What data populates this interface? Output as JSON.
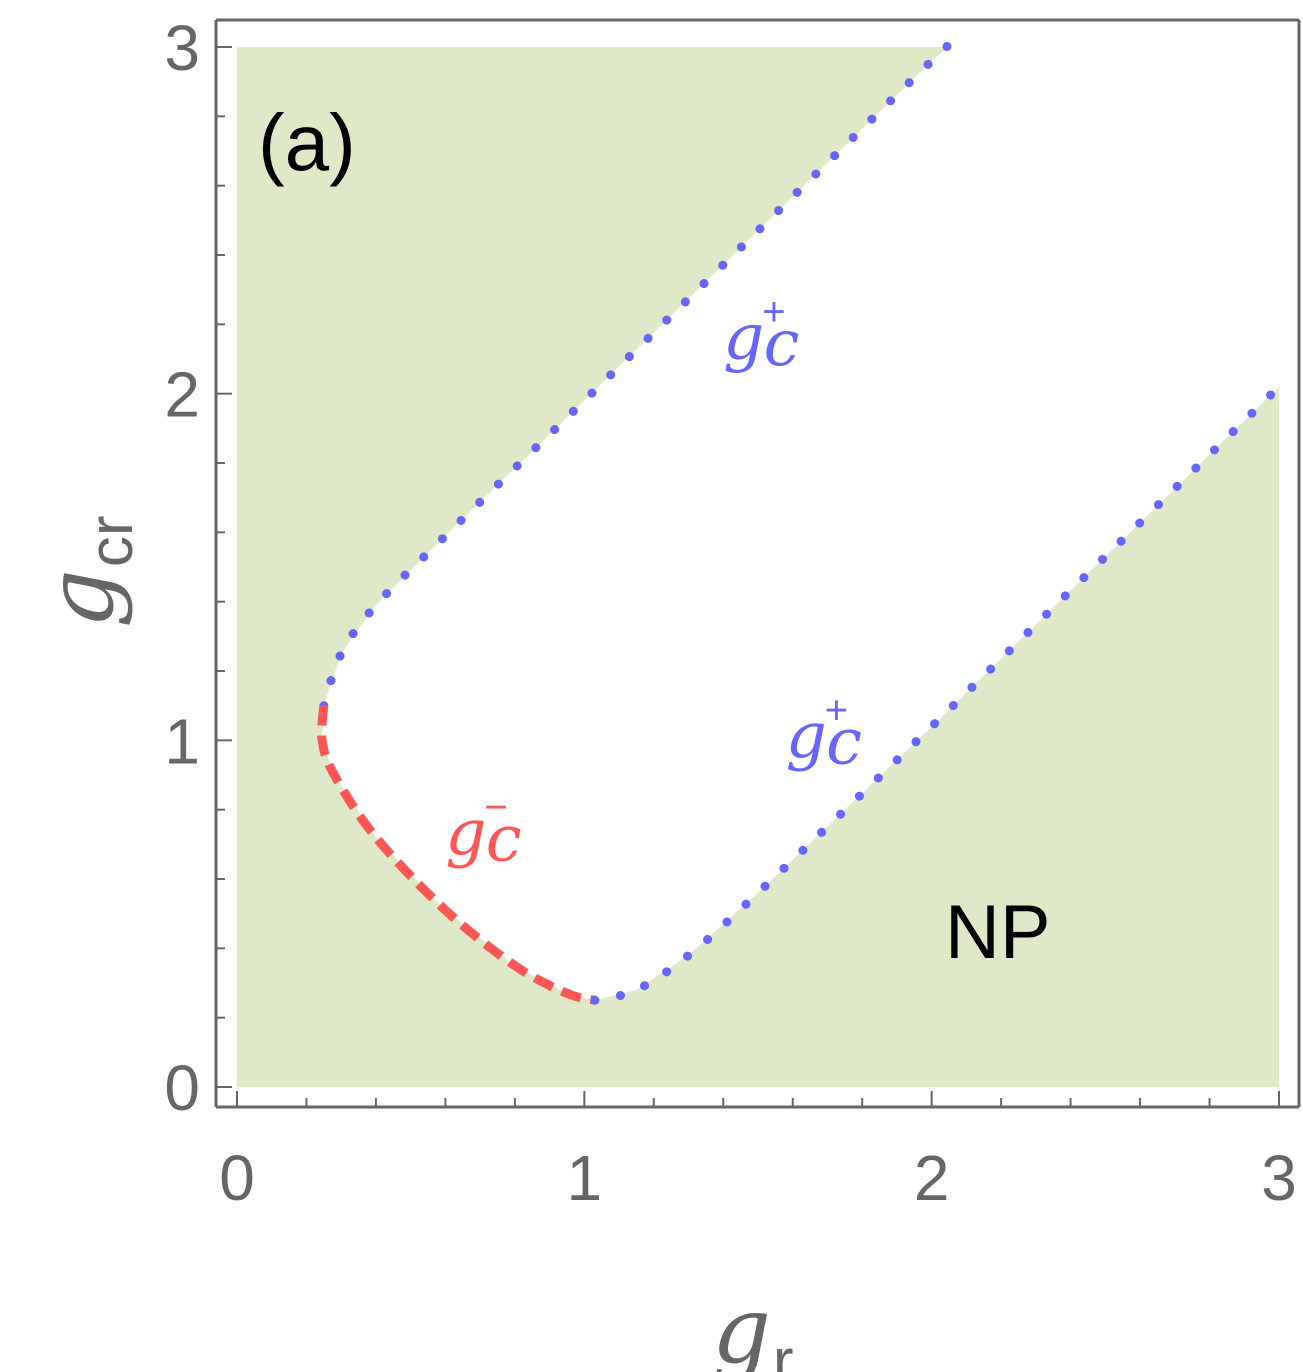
{
  "chart_data": {
    "type": "area",
    "panel_label": "(a)",
    "xlabel": {
      "main": "g",
      "sub": "r"
    },
    "ylabel": {
      "main": "g",
      "sub": "cr"
    },
    "xlim": [
      0,
      3
    ],
    "ylim": [
      0,
      3
    ],
    "xticks": [
      "0",
      "1",
      "2",
      "3"
    ],
    "yticks": [
      "0",
      "1",
      "2",
      "3"
    ],
    "region_label": "NP",
    "colors": {
      "region_fill": "#dfe9c8",
      "gc_plus": "#6666ff",
      "gc_minus": "#ff5555",
      "axis": "#666666"
    },
    "series": [
      {
        "name": "g_c^+",
        "style": "dotted",
        "points": [
          [
            0.25,
            1.1
          ],
          [
            0.3,
            1.25
          ],
          [
            0.4,
            1.39
          ],
          [
            0.6,
            1.59
          ],
          [
            1.0,
            1.98
          ],
          [
            1.5,
            2.47
          ],
          [
            2.0,
            2.96
          ],
          [
            2.05,
            3.0
          ]
        ]
      },
      {
        "name": "g_c^-",
        "style": "dashed",
        "points": [
          [
            0.25,
            1.1
          ],
          [
            0.245,
            1.0
          ],
          [
            0.28,
            0.9
          ],
          [
            0.4,
            0.72
          ],
          [
            0.6,
            0.51
          ],
          [
            0.8,
            0.35
          ],
          [
            0.95,
            0.27
          ],
          [
            1.03,
            0.25
          ]
        ]
      },
      {
        "name": "g_c^+",
        "style": "dotted",
        "points": [
          [
            1.03,
            0.25
          ],
          [
            1.15,
            0.28
          ],
          [
            1.3,
            0.38
          ],
          [
            1.5,
            0.56
          ],
          [
            2.0,
            1.04
          ],
          [
            2.5,
            1.53
          ],
          [
            3.0,
            2.02
          ]
        ]
      }
    ],
    "curve_labels": [
      {
        "main": "g",
        "sub": "c",
        "sup": "+",
        "color": "#6666ff",
        "x": 1.4,
        "y": 2.1
      },
      {
        "main": "g",
        "sub": "c",
        "sup": "+",
        "color": "#6666ff",
        "x": 1.58,
        "y": 0.95
      },
      {
        "main": "g",
        "sub": "c",
        "sup": "−",
        "color": "#ff5555",
        "x": 0.6,
        "y": 0.67
      }
    ]
  }
}
